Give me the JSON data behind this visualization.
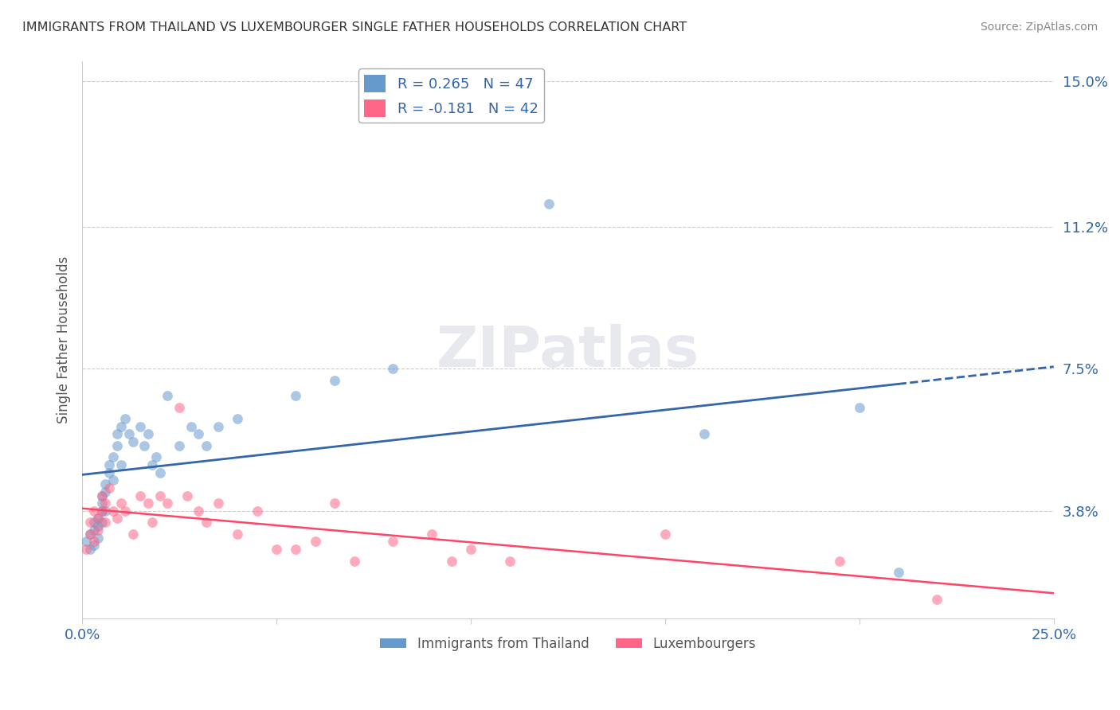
{
  "title": "IMMIGRANTS FROM THAILAND VS LUXEMBOURGER SINGLE FATHER HOUSEHOLDS CORRELATION CHART",
  "source": "Source: ZipAtlas.com",
  "ylabel": "Single Father Households",
  "xlim": [
    0,
    0.25
  ],
  "ylim": [
    0.01,
    0.155
  ],
  "yticks": [
    0.038,
    0.075,
    0.112,
    0.15
  ],
  "ytick_labels": [
    "3.8%",
    "7.5%",
    "11.2%",
    "15.0%"
  ],
  "xticks": [
    0.0,
    0.05,
    0.1,
    0.15,
    0.2,
    0.25
  ],
  "xtick_labels": [
    "0.0%",
    "",
    "",
    "",
    "",
    "25.0%"
  ],
  "legend_r1": "R = 0.265",
  "legend_n1": "N = 47",
  "legend_r2": "R = -0.181",
  "legend_n2": "N = 42",
  "color_blue": "#6699CC",
  "color_pink": "#FF6688",
  "color_line_blue": "#3366AA",
  "color_line_pink": "#FF4466",
  "color_text_blue": "#3366AA",
  "scatter_blue_x": [
    0.001,
    0.002,
    0.002,
    0.003,
    0.003,
    0.003,
    0.004,
    0.004,
    0.004,
    0.005,
    0.005,
    0.005,
    0.005,
    0.006,
    0.006,
    0.006,
    0.007,
    0.007,
    0.008,
    0.008,
    0.009,
    0.009,
    0.01,
    0.01,
    0.011,
    0.012,
    0.013,
    0.015,
    0.016,
    0.017,
    0.018,
    0.019,
    0.02,
    0.022,
    0.025,
    0.028,
    0.03,
    0.032,
    0.035,
    0.04,
    0.055,
    0.065,
    0.08,
    0.12,
    0.16,
    0.2,
    0.21
  ],
  "scatter_blue_y": [
    0.03,
    0.032,
    0.028,
    0.033,
    0.035,
    0.029,
    0.034,
    0.036,
    0.031,
    0.038,
    0.04,
    0.035,
    0.042,
    0.045,
    0.043,
    0.038,
    0.05,
    0.048,
    0.052,
    0.046,
    0.055,
    0.058,
    0.06,
    0.05,
    0.062,
    0.058,
    0.056,
    0.06,
    0.055,
    0.058,
    0.05,
    0.052,
    0.048,
    0.068,
    0.055,
    0.06,
    0.058,
    0.055,
    0.06,
    0.062,
    0.068,
    0.072,
    0.075,
    0.118,
    0.058,
    0.065,
    0.022
  ],
  "scatter_pink_x": [
    0.001,
    0.002,
    0.002,
    0.003,
    0.003,
    0.004,
    0.004,
    0.005,
    0.005,
    0.006,
    0.006,
    0.007,
    0.008,
    0.009,
    0.01,
    0.011,
    0.013,
    0.015,
    0.017,
    0.018,
    0.02,
    0.022,
    0.025,
    0.027,
    0.03,
    0.032,
    0.035,
    0.04,
    0.045,
    0.05,
    0.055,
    0.06,
    0.065,
    0.07,
    0.08,
    0.09,
    0.095,
    0.1,
    0.11,
    0.15,
    0.195,
    0.22
  ],
  "scatter_pink_y": [
    0.028,
    0.032,
    0.035,
    0.03,
    0.038,
    0.036,
    0.033,
    0.042,
    0.038,
    0.04,
    0.035,
    0.044,
    0.038,
    0.036,
    0.04,
    0.038,
    0.032,
    0.042,
    0.04,
    0.035,
    0.042,
    0.04,
    0.065,
    0.042,
    0.038,
    0.035,
    0.04,
    0.032,
    0.038,
    0.028,
    0.028,
    0.03,
    0.04,
    0.025,
    0.03,
    0.032,
    0.025,
    0.028,
    0.025,
    0.032,
    0.025,
    0.015
  ]
}
